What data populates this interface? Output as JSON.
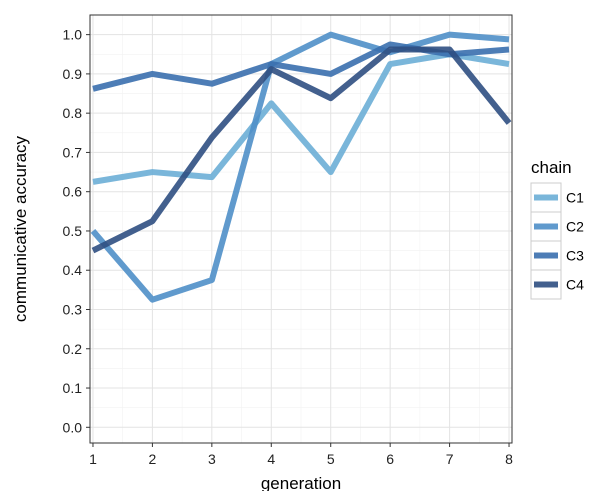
{
  "chart_data": {
    "type": "line",
    "xlabel": "generation",
    "ylabel": "communicative accuracy",
    "x": [
      1,
      2,
      3,
      4,
      5,
      6,
      7,
      8
    ],
    "xticks": [
      "1",
      "2",
      "3",
      "4",
      "5",
      "6",
      "7",
      "8"
    ],
    "yticks": [
      "0.0",
      "0.1",
      "0.2",
      "0.3",
      "0.4",
      "0.5",
      "0.6",
      "0.7",
      "0.8",
      "0.9",
      "1.0"
    ],
    "xlim": [
      0.95,
      8.05
    ],
    "ylim": [
      -0.04,
      1.05
    ],
    "grid": true,
    "legend": {
      "title": "chain",
      "placement": "right"
    },
    "series": [
      {
        "name": "C1",
        "color": "#6baed6",
        "values": [
          0.625,
          0.65,
          0.637,
          0.825,
          0.65,
          0.925,
          0.95,
          0.925
        ]
      },
      {
        "name": "C2",
        "color": "#4f8fc8",
        "values": [
          0.5,
          0.325,
          0.375,
          0.925,
          1.0,
          0.955,
          1.0,
          0.988
        ]
      },
      {
        "name": "C3",
        "color": "#3a6fae",
        "values": [
          0.862,
          0.9,
          0.875,
          0.925,
          0.9,
          0.975,
          0.95,
          0.962
        ]
      },
      {
        "name": "C4",
        "color": "#2f4f82",
        "values": [
          0.45,
          0.525,
          0.738,
          0.912,
          0.838,
          0.962,
          0.962,
          0.775
        ]
      }
    ]
  }
}
